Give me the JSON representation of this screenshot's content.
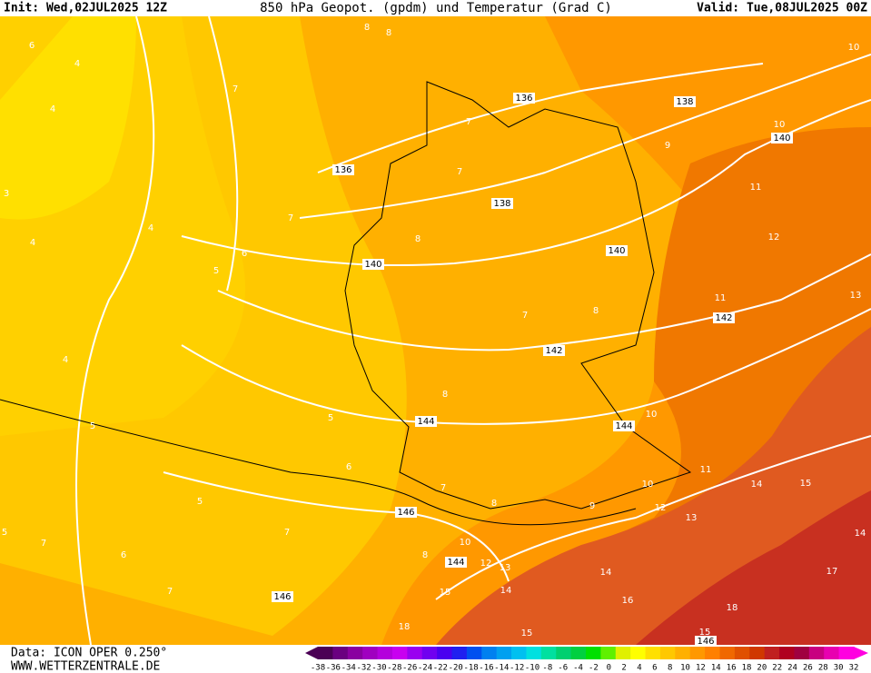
{
  "header": {
    "init": "Init: Wed,02JUL2025 12Z",
    "title": "850 hPa Geopot. (gpdm) und Temperatur (Grad C)",
    "valid": "Valid: Tue,08JUL2025 00Z"
  },
  "footer": {
    "data": "Data: ICON OPER 0.250°",
    "site": "WWW.WETTERZENTRALE.DE"
  },
  "scale": {
    "labels": [
      "-38",
      "-36",
      "-34",
      "-32",
      "-30",
      "-28",
      "-26",
      "-24",
      "-22",
      "-20",
      "-18",
      "-16",
      "-14",
      "-12",
      "-10",
      "-8",
      "-6",
      "-4",
      "-2",
      "0",
      "2",
      "4",
      "6",
      "8",
      "10",
      "12",
      "14",
      "16",
      "18",
      "20",
      "22",
      "24",
      "26",
      "28",
      "30",
      "32"
    ],
    "colors": [
      "#4b0055",
      "#6a0080",
      "#8a00a0",
      "#a000c0",
      "#b400dc",
      "#c800f0",
      "#9a00f0",
      "#7000f0",
      "#4a00f0",
      "#2020f0",
      "#0050f0",
      "#0080f0",
      "#00a0f0",
      "#00c0f0",
      "#00e0e0",
      "#00e0a0",
      "#00d070",
      "#00d040",
      "#00e000",
      "#60f000",
      "#e0f000",
      "#ffff00",
      "#ffe000",
      "#ffc800",
      "#ffb000",
      "#ff9800",
      "#ff8000",
      "#f06800",
      "#e05000",
      "#d03800",
      "#c02020",
      "#b00020",
      "#a00040",
      "#c80080",
      "#e800b0",
      "#ff00e0"
    ]
  },
  "geopotential_labels": [
    "136",
    "138",
    "136",
    "138",
    "140",
    "140",
    "140",
    "142",
    "142",
    "144",
    "144",
    "146",
    "144",
    "146",
    "146"
  ],
  "temperature_labels": [
    "10",
    "10",
    "11",
    "12",
    "11",
    "13",
    "10",
    "11",
    "10",
    "12",
    "13",
    "14",
    "15",
    "14",
    "17",
    "16",
    "18",
    "15",
    "15",
    "14",
    "14",
    "13",
    "12",
    "10",
    "18",
    "15",
    "9",
    "9",
    "8",
    "8",
    "7",
    "8",
    "7",
    "7",
    "7",
    "7",
    "8",
    "6",
    "5",
    "4",
    "4",
    "3",
    "4",
    "4",
    "6",
    "8",
    "8",
    "5",
    "5",
    "5",
    "5",
    "6",
    "7",
    "7",
    "6",
    "4",
    "7",
    "7",
    "8"
  ]
}
